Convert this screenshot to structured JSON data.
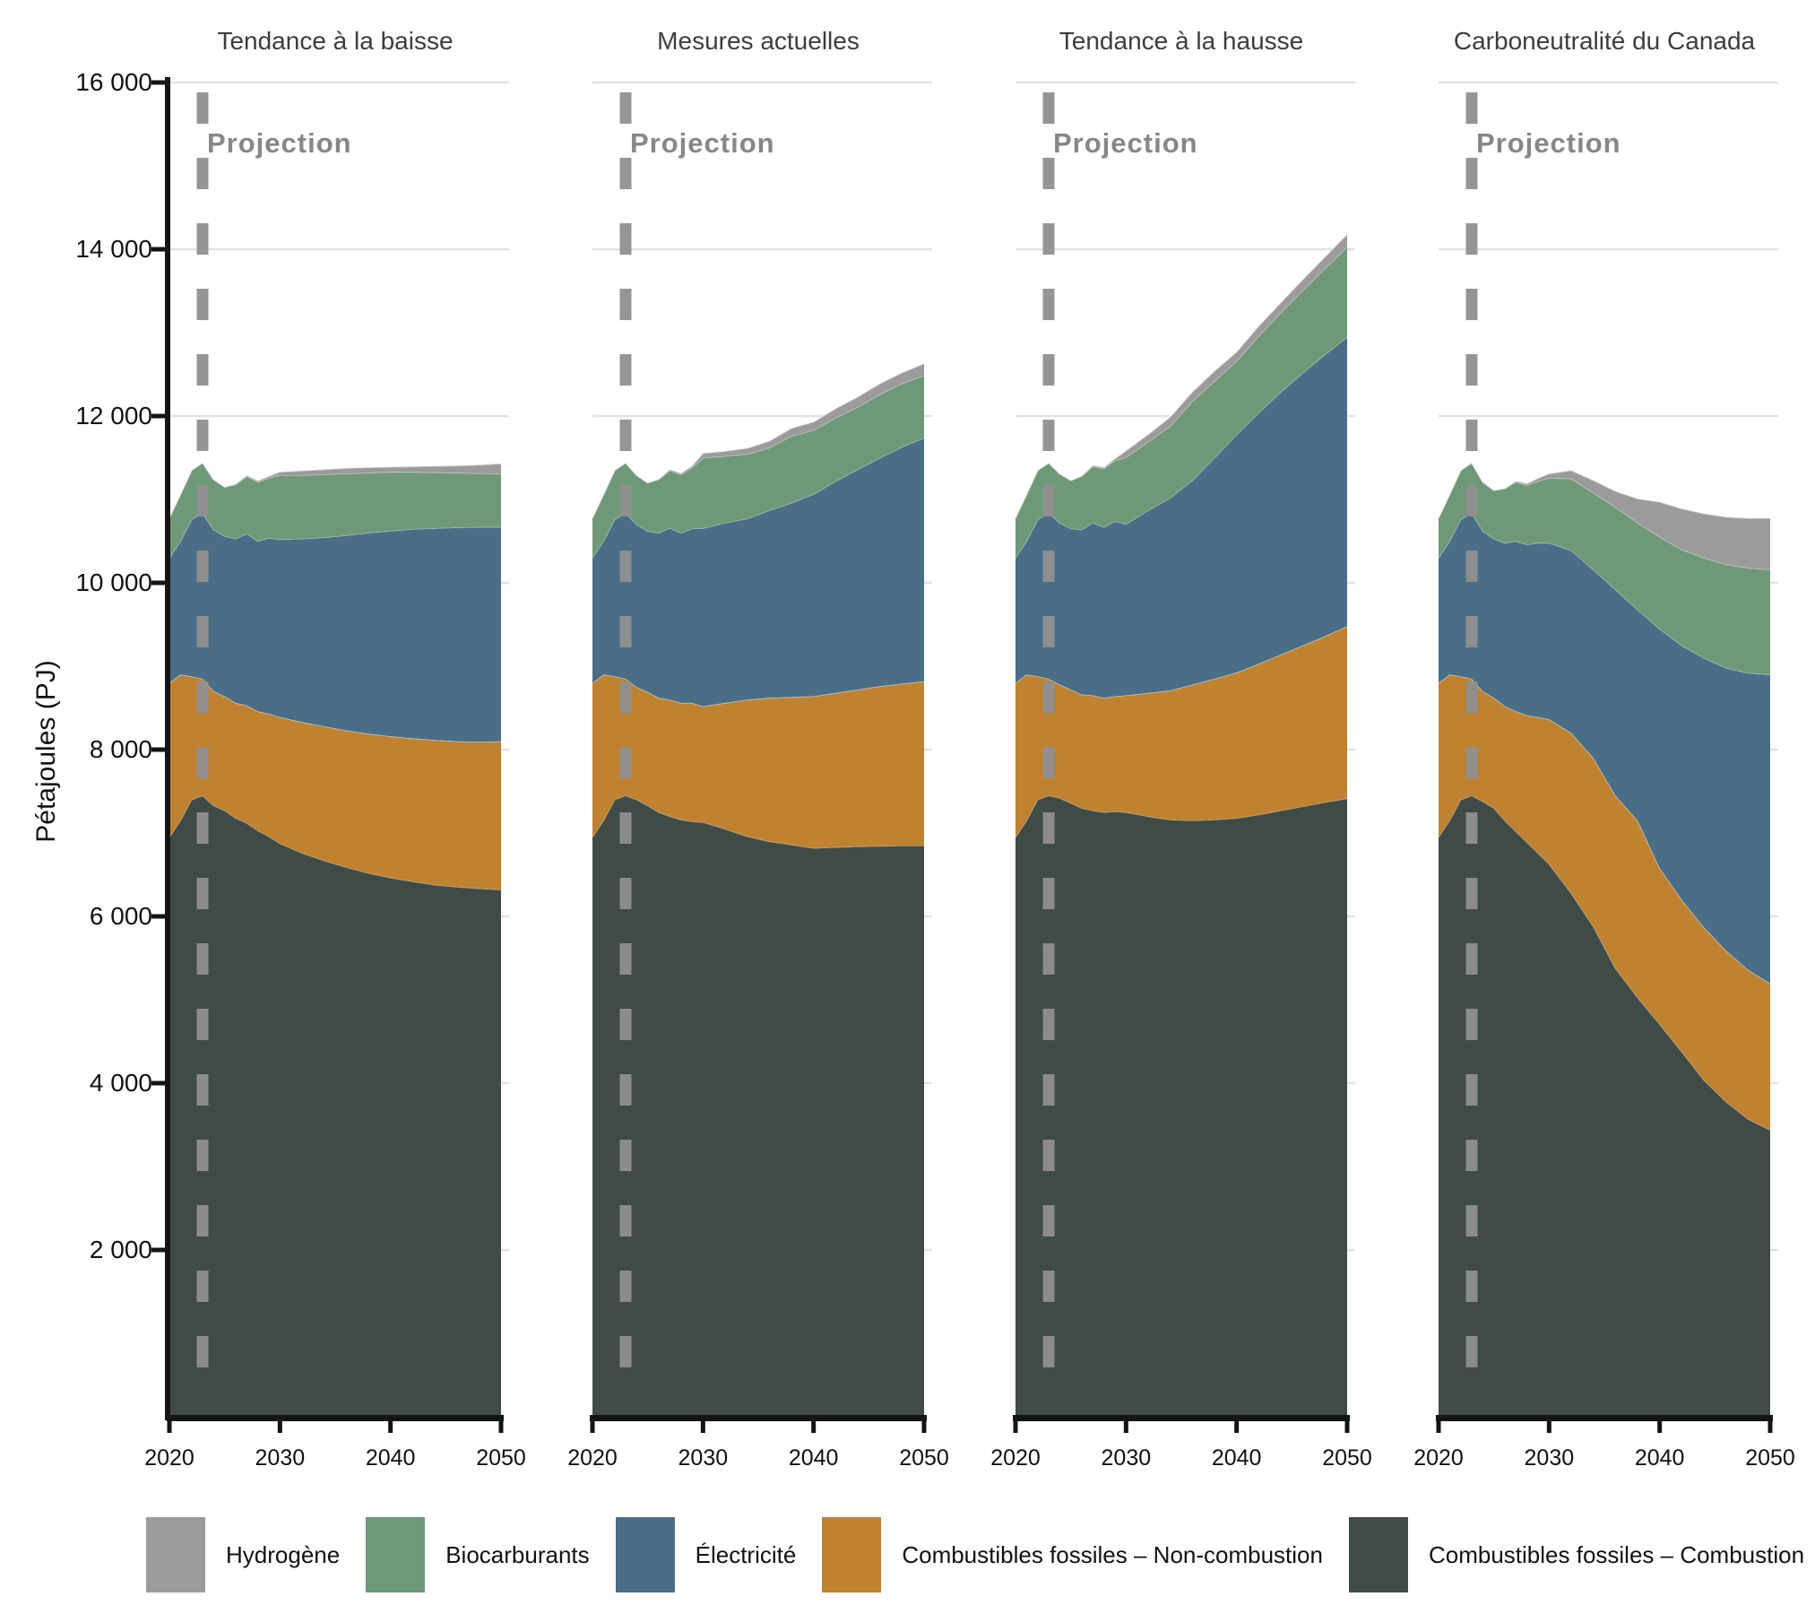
{
  "chart_data": {
    "type": "area",
    "stacked": true,
    "ylabel": "Pétajoules (PJ)",
    "ylim": [
      0,
      16000
    ],
    "grid": true,
    "y_ticks": [
      {
        "value": 16000,
        "label": "16 000"
      },
      {
        "value": 14000,
        "label": "14 000"
      },
      {
        "value": 12000,
        "label": "12 000"
      },
      {
        "value": 10000,
        "label": "10 000"
      },
      {
        "value": 8000,
        "label": "8 000"
      },
      {
        "value": 6000,
        "label": "6 000"
      },
      {
        "value": 4000,
        "label": "4 000"
      },
      {
        "value": 2000,
        "label": "2 000"
      }
    ],
    "x_ticks": [
      {
        "value": 2020,
        "label": "2020"
      },
      {
        "value": 2030,
        "label": "2030"
      },
      {
        "value": 2040,
        "label": "2040"
      },
      {
        "value": 2050,
        "label": "2050"
      }
    ],
    "xlim": [
      2020,
      2050
    ],
    "projection": {
      "label": "Projection",
      "year": 2023
    },
    "years": [
      2020,
      2021,
      2022,
      2023,
      2024,
      2025,
      2026,
      2027,
      2028,
      2029,
      2030,
      2032,
      2034,
      2036,
      2038,
      2040,
      2042,
      2044,
      2046,
      2048,
      2050
    ],
    "stack_order": [
      "combustion",
      "non_combustion",
      "electricite",
      "biocarburants",
      "hydrogene"
    ],
    "legend": [
      {
        "key": "hydrogene",
        "label": "Hydrogène",
        "color": "#9b9b9b"
      },
      {
        "key": "biocarburants",
        "label": "Biocarburants",
        "color": "#6f9878"
      },
      {
        "key": "electricite",
        "label": "Électricité",
        "color": "#4a6e85"
      },
      {
        "key": "non_combustion",
        "label": "Combustibles fossiles – Non-combustion",
        "color": "#bf8231"
      },
      {
        "key": "combustion",
        "label": "Combustibles fossiles – Combustion",
        "color": "#404b45"
      }
    ],
    "panels": [
      {
        "title": "Tendance à la baisse",
        "series": {
          "combustion": [
            6950,
            7150,
            7400,
            7450,
            7330,
            7270,
            7180,
            7120,
            7030,
            6960,
            6875,
            6760,
            6670,
            6590,
            6520,
            6465,
            6420,
            6380,
            6355,
            6335,
            6320
          ],
          "non_combustion": [
            1850,
            1750,
            1480,
            1400,
            1370,
            1370,
            1380,
            1410,
            1430,
            1470,
            1515,
            1570,
            1610,
            1640,
            1670,
            1695,
            1715,
            1735,
            1745,
            1760,
            1780
          ],
          "electricite": [
            1500,
            1600,
            1880,
            1990,
            1940,
            1920,
            1970,
            2060,
            2040,
            2110,
            2130,
            2200,
            2265,
            2340,
            2410,
            2465,
            2510,
            2540,
            2565,
            2575,
            2570
          ],
          "biocarburants": [
            480,
            560,
            590,
            600,
            600,
            590,
            650,
            690,
            710,
            720,
            770,
            760,
            755,
            740,
            720,
            705,
            685,
            670,
            655,
            645,
            640
          ],
          "hydrogene": [
            0,
            0,
            0,
            0,
            0,
            0,
            5,
            10,
            15,
            20,
            40,
            55,
            60,
            65,
            65,
            60,
            65,
            75,
            85,
            100,
            120
          ]
        }
      },
      {
        "title": "Mesures actuelles",
        "series": {
          "combustion": [
            6950,
            7150,
            7400,
            7450,
            7400,
            7330,
            7250,
            7200,
            7160,
            7140,
            7130,
            7050,
            6960,
            6900,
            6860,
            6820,
            6830,
            6840,
            6845,
            6850,
            6850
          ],
          "non_combustion": [
            1850,
            1750,
            1480,
            1400,
            1350,
            1360,
            1370,
            1400,
            1400,
            1420,
            1390,
            1510,
            1640,
            1720,
            1770,
            1820,
            1850,
            1880,
            1915,
            1940,
            1970
          ],
          "electricite": [
            1500,
            1600,
            1880,
            1990,
            1950,
            1930,
            1980,
            2060,
            2040,
            2090,
            2135,
            2160,
            2170,
            2250,
            2330,
            2425,
            2540,
            2640,
            2740,
            2840,
            2920
          ],
          "biocarburants": [
            480,
            560,
            590,
            600,
            590,
            580,
            640,
            690,
            700,
            730,
            845,
            800,
            775,
            750,
            800,
            765,
            760,
            750,
            760,
            760,
            750
          ],
          "hydrogene": [
            0,
            0,
            0,
            0,
            0,
            0,
            5,
            10,
            15,
            20,
            55,
            60,
            70,
            80,
            95,
            100,
            110,
            120,
            130,
            130,
            140
          ]
        }
      },
      {
        "title": "Tendance à la hausse",
        "series": {
          "combustion": [
            6950,
            7150,
            7400,
            7450,
            7420,
            7360,
            7300,
            7270,
            7250,
            7260,
            7250,
            7200,
            7160,
            7150,
            7160,
            7180,
            7220,
            7270,
            7320,
            7370,
            7415
          ],
          "non_combustion": [
            1850,
            1750,
            1480,
            1400,
            1360,
            1360,
            1360,
            1380,
            1370,
            1380,
            1400,
            1480,
            1550,
            1630,
            1690,
            1745,
            1810,
            1870,
            1930,
            1990,
            2065
          ],
          "electricite": [
            1500,
            1600,
            1880,
            1990,
            1940,
            1930,
            1980,
            2070,
            2050,
            2100,
            2055,
            2190,
            2310,
            2450,
            2650,
            2855,
            3010,
            3150,
            3270,
            3380,
            3470
          ],
          "biocarburants": [
            480,
            560,
            590,
            600,
            590,
            580,
            640,
            680,
            700,
            730,
            800,
            820,
            860,
            950,
            920,
            880,
            920,
            950,
            990,
            1030,
            1080
          ],
          "hydrogene": [
            0,
            0,
            0,
            0,
            0,
            0,
            5,
            10,
            15,
            20,
            80,
            90,
            110,
            110,
            120,
            110,
            120,
            120,
            130,
            140,
            150
          ]
        }
      },
      {
        "title": "Carboneutralité du Canada",
        "series": {
          "combustion": [
            6950,
            7150,
            7400,
            7450,
            7380,
            7300,
            7150,
            7020,
            6890,
            6760,
            6630,
            6280,
            5880,
            5380,
            5030,
            4710,
            4380,
            4040,
            3780,
            3570,
            3440
          ],
          "non_combustion": [
            1850,
            1750,
            1480,
            1400,
            1320,
            1320,
            1370,
            1440,
            1520,
            1630,
            1735,
            1920,
            2020,
            2070,
            2120,
            1870,
            1820,
            1830,
            1810,
            1790,
            1755
          ],
          "electricite": [
            1500,
            1600,
            1880,
            1990,
            1920,
            1910,
            1960,
            2040,
            2050,
            2090,
            2115,
            2190,
            2260,
            2470,
            2530,
            2870,
            3050,
            3230,
            3390,
            3560,
            3705
          ],
          "biocarburants": [
            480,
            560,
            590,
            600,
            590,
            580,
            650,
            710,
            710,
            740,
            780,
            860,
            920,
            990,
            1040,
            1100,
            1150,
            1200,
            1240,
            1260,
            1260
          ],
          "hydrogene": [
            0,
            0,
            0,
            0,
            0,
            0,
            5,
            10,
            20,
            35,
            50,
            100,
            150,
            190,
            290,
            420,
            490,
            530,
            570,
            595,
            615
          ]
        }
      }
    ],
    "colors": {
      "grid": "#e2e2e2",
      "axis": "#141414",
      "projection_line": "#8f8f8f",
      "projection_text": "#878787",
      "panel_title": "#3d3d3d"
    }
  }
}
